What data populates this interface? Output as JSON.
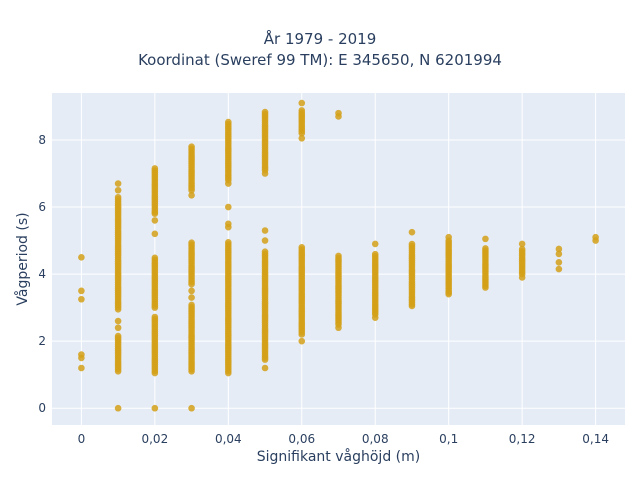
{
  "chart_data": {
    "type": "scatter",
    "title_lines": [
      "År 1979 - 2019",
      "Koordinat (Sweref 99 TM): E 345650, N 6201994"
    ],
    "xlabel": "Signifikant våghöjd (m)",
    "ylabel": "Vågperiod (s)",
    "xlim": [
      -0.008,
      0.148
    ],
    "ylim": [
      -0.5,
      9.4
    ],
    "x_ticks": [
      {
        "value": 0,
        "label": "0"
      },
      {
        "value": 0.02,
        "label": "0,02"
      },
      {
        "value": 0.04,
        "label": "0,04"
      },
      {
        "value": 0.06,
        "label": "0,06"
      },
      {
        "value": 0.08,
        "label": "0,08"
      },
      {
        "value": 0.1,
        "label": "0,1"
      },
      {
        "value": 0.12,
        "label": "0,12"
      },
      {
        "value": 0.14,
        "label": "0,14"
      }
    ],
    "y_ticks": [
      {
        "value": 0,
        "label": "0"
      },
      {
        "value": 2,
        "label": "2"
      },
      {
        "value": 4,
        "label": "4"
      },
      {
        "value": 6,
        "label": "6"
      },
      {
        "value": 8,
        "label": "8"
      }
    ],
    "grid": true,
    "marker_color": "#D4A017",
    "background_color": "#E5ECF6",
    "series": [
      {
        "points": [
          {
            "x": 0,
            "y": 1.2
          },
          {
            "x": 0,
            "y": 1.5
          },
          {
            "x": 0,
            "y": 1.6
          },
          {
            "x": 0,
            "y": 3.25
          },
          {
            "x": 0,
            "y": 3.5
          },
          {
            "x": 0,
            "y": 4.5
          },
          {
            "x": 0.01,
            "y": 0
          },
          {
            "x": 0.01,
            "y": 2.4
          },
          {
            "x": 0.01,
            "y": 2.6
          },
          {
            "x": 0.01,
            "y": 6.5
          },
          {
            "x": 0.01,
            "y": 6.7
          },
          {
            "x": 0.02,
            "y": 0
          },
          {
            "x": 0.02,
            "y": 5.2
          },
          {
            "x": 0.02,
            "y": 5.6
          },
          {
            "x": 0.02,
            "y": 5.8
          },
          {
            "x": 0.03,
            "y": 0
          },
          {
            "x": 0.03,
            "y": 3.3
          },
          {
            "x": 0.03,
            "y": 3.5
          },
          {
            "x": 0.03,
            "y": 6.35
          },
          {
            "x": 0.04,
            "y": 6.0
          },
          {
            "x": 0.04,
            "y": 5.5
          },
          {
            "x": 0.04,
            "y": 5.4
          },
          {
            "x": 0.04,
            "y": 6.7
          },
          {
            "x": 0.05,
            "y": 1.2
          },
          {
            "x": 0.05,
            "y": 5.3
          },
          {
            "x": 0.05,
            "y": 5.0
          },
          {
            "x": 0.05,
            "y": 7.0
          },
          {
            "x": 0.06,
            "y": 2.0
          },
          {
            "x": 0.06,
            "y": 8.05
          },
          {
            "x": 0.06,
            "y": 9.1
          },
          {
            "x": 0.07,
            "y": 8.7
          },
          {
            "x": 0.07,
            "y": 8.8
          },
          {
            "x": 0.07,
            "y": 2.4
          },
          {
            "x": 0.08,
            "y": 4.9
          },
          {
            "x": 0.08,
            "y": 2.7
          },
          {
            "x": 0.09,
            "y": 5.25
          },
          {
            "x": 0.09,
            "y": 3.05
          },
          {
            "x": 0.1,
            "y": 5.1
          },
          {
            "x": 0.1,
            "y": 3.4
          },
          {
            "x": 0.11,
            "y": 5.05
          },
          {
            "x": 0.11,
            "y": 3.6
          },
          {
            "x": 0.12,
            "y": 4.9
          },
          {
            "x": 0.12,
            "y": 3.9
          },
          {
            "x": 0.13,
            "y": 4.75
          },
          {
            "x": 0.13,
            "y": 4.6
          },
          {
            "x": 0.13,
            "y": 4.35
          },
          {
            "x": 0.13,
            "y": 4.15
          },
          {
            "x": 0.14,
            "y": 5.1
          },
          {
            "x": 0.14,
            "y": 5.0
          }
        ],
        "dense_ranges": [
          {
            "x": 0.01,
            "y_min": 1.1,
            "y_max": 2.2
          },
          {
            "x": 0.01,
            "y_min": 2.95,
            "y_max": 6.35
          },
          {
            "x": 0.02,
            "y_min": 1.05,
            "y_max": 2.75
          },
          {
            "x": 0.02,
            "y_min": 3.0,
            "y_max": 4.5
          },
          {
            "x": 0.02,
            "y_min": 5.85,
            "y_max": 7.2
          },
          {
            "x": 0.03,
            "y_min": 1.1,
            "y_max": 3.1
          },
          {
            "x": 0.03,
            "y_min": 3.7,
            "y_max": 4.95
          },
          {
            "x": 0.03,
            "y_min": 6.5,
            "y_max": 7.8
          },
          {
            "x": 0.04,
            "y_min": 1.05,
            "y_max": 5.0
          },
          {
            "x": 0.04,
            "y_min": 6.8,
            "y_max": 8.55
          },
          {
            "x": 0.05,
            "y_min": 1.45,
            "y_max": 4.7
          },
          {
            "x": 0.05,
            "y_min": 7.1,
            "y_max": 8.85
          },
          {
            "x": 0.06,
            "y_min": 2.2,
            "y_max": 4.85
          },
          {
            "x": 0.06,
            "y_min": 8.2,
            "y_max": 8.9
          },
          {
            "x": 0.07,
            "y_min": 2.5,
            "y_max": 4.55
          },
          {
            "x": 0.08,
            "y_min": 2.8,
            "y_max": 4.6
          },
          {
            "x": 0.09,
            "y_min": 3.1,
            "y_max": 4.95
          },
          {
            "x": 0.1,
            "y_min": 3.45,
            "y_max": 5.0
          },
          {
            "x": 0.11,
            "y_min": 3.65,
            "y_max": 4.8
          },
          {
            "x": 0.12,
            "y_min": 4.0,
            "y_max": 4.8
          }
        ]
      }
    ]
  }
}
